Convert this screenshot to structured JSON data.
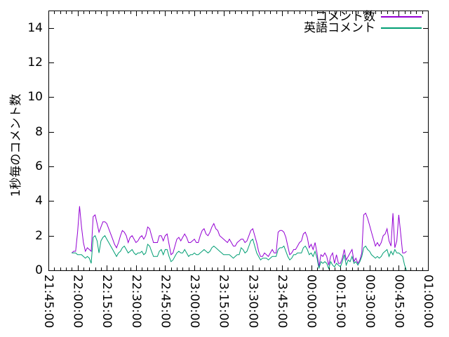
{
  "chart_data": {
    "type": "line",
    "title": "",
    "xlabel": "",
    "ylabel": "1秒毎のコメント数",
    "ylim": [
      0,
      15
    ],
    "y_ticks": [
      0,
      2,
      4,
      6,
      8,
      10,
      12,
      14
    ],
    "grid": false,
    "legend_position": "top-right-inside",
    "x_axis": {
      "unit": "time",
      "major_tick_interval_minutes": 15,
      "minor_tick_interval_minutes": 3,
      "range_minutes": 195,
      "tick_labels": [
        "21:45:00",
        "22:00:00",
        "22:15:00",
        "22:30:00",
        "22:45:00",
        "23:00:00",
        "23:15:00",
        "23:30:00",
        "23:45:00",
        "00:00:00",
        "00:15:00",
        "00:30:00",
        "00:45:00",
        "01:00:00"
      ]
    },
    "sample_interval_minutes": 1,
    "data_start_offset_minutes": 12,
    "data_start_time": "21:57:00",
    "series": [
      {
        "name": "コメント数",
        "color": "#9400d3",
        "values": [
          1.0,
          1.1,
          1.1,
          2.2,
          3.7,
          2.5,
          1.6,
          1.1,
          1.3,
          1.2,
          1.1,
          3.1,
          3.2,
          2.7,
          2.2,
          2.5,
          2.8,
          2.8,
          2.7,
          2.4,
          2.1,
          1.8,
          1.5,
          1.3,
          1.6,
          2.0,
          2.3,
          2.2,
          2.0,
          1.6,
          1.9,
          2.0,
          1.8,
          1.6,
          1.7,
          1.9,
          2.0,
          1.8,
          2.0,
          2.5,
          2.4,
          2.0,
          1.6,
          1.6,
          1.6,
          2.0,
          2.0,
          1.7,
          2.0,
          2.1,
          1.5,
          0.9,
          1.0,
          1.4,
          1.8,
          1.9,
          1.7,
          1.9,
          2.1,
          1.9,
          1.6,
          1.6,
          1.7,
          1.8,
          1.6,
          1.6,
          2.0,
          2.3,
          2.4,
          2.1,
          2.0,
          2.2,
          2.5,
          2.7,
          2.4,
          2.3,
          2.0,
          1.9,
          1.8,
          1.7,
          1.6,
          1.8,
          1.6,
          1.4,
          1.4,
          1.6,
          1.7,
          1.8,
          1.8,
          1.6,
          1.7,
          2.0,
          2.3,
          2.4,
          2.0,
          1.6,
          1.1,
          0.8,
          0.8,
          1.0,
          0.9,
          0.8,
          1.0,
          1.2,
          1.0,
          1.0,
          2.2,
          2.3,
          2.3,
          2.2,
          1.9,
          1.4,
          0.9,
          1.0,
          1.2,
          1.2,
          1.4,
          1.6,
          1.7,
          2.1,
          2.2,
          1.9,
          1.3,
          1.5,
          1.2,
          1.6,
          1.0,
          0.2,
          0.9,
          0.8,
          1.0,
          0.8,
          0.3,
          0.8,
          1.0,
          0.4,
          0.9,
          0.4,
          0.4,
          0.7,
          1.2,
          0.6,
          0.8,
          1.0,
          1.2,
          0.5,
          0.7,
          0.4,
          0.6,
          1.0,
          3.2,
          3.3,
          3.0,
          2.6,
          2.2,
          1.8,
          1.4,
          1.6,
          1.4,
          1.6,
          2.0,
          2.1,
          2.4,
          1.7,
          1.4,
          3.3,
          1.3,
          1.7,
          3.2,
          2.1,
          1.0,
          1.0,
          1.1
        ]
      },
      {
        "name": "英語コメント",
        "color": "#009e73",
        "values": [
          1.0,
          1.0,
          1.0,
          0.9,
          0.9,
          0.9,
          0.8,
          0.7,
          0.8,
          0.7,
          0.4,
          1.9,
          2.0,
          1.7,
          1.0,
          1.7,
          1.9,
          2.0,
          1.8,
          1.6,
          1.4,
          1.2,
          1.0,
          0.8,
          1.0,
          1.1,
          1.3,
          1.4,
          1.2,
          1.0,
          1.1,
          1.2,
          1.0,
          0.9,
          1.0,
          1.0,
          1.1,
          0.9,
          1.0,
          1.5,
          1.4,
          1.1,
          0.8,
          0.8,
          0.8,
          1.1,
          1.2,
          0.9,
          1.2,
          1.2,
          0.8,
          0.5,
          0.6,
          0.8,
          1.0,
          1.1,
          1.0,
          1.0,
          1.2,
          1.0,
          0.8,
          0.9,
          0.9,
          1.0,
          0.9,
          0.9,
          1.0,
          1.1,
          1.2,
          1.1,
          1.0,
          1.1,
          1.3,
          1.4,
          1.3,
          1.2,
          1.1,
          1.0,
          0.9,
          0.9,
          0.9,
          0.9,
          0.8,
          0.7,
          0.8,
          0.9,
          0.9,
          1.3,
          1.2,
          1.0,
          1.1,
          1.4,
          1.7,
          1.8,
          1.4,
          1.0,
          0.8,
          0.6,
          0.7,
          0.7,
          0.7,
          0.6,
          0.7,
          0.8,
          0.8,
          0.8,
          1.2,
          1.3,
          1.3,
          1.4,
          1.1,
          0.8,
          0.6,
          0.7,
          0.9,
          0.9,
          1.0,
          1.0,
          1.0,
          1.3,
          1.4,
          1.2,
          0.9,
          1.0,
          0.8,
          1.1,
          0.7,
          0.1,
          0.5,
          0.4,
          0.5,
          0.4,
          0.1,
          0.5,
          0.3,
          0.2,
          0.4,
          0.3,
          0.2,
          0.5,
          0.9,
          0.3,
          0.6,
          0.5,
          0.8,
          0.4,
          0.5,
          0.3,
          0.5,
          0.8,
          1.3,
          1.4,
          1.2,
          1.1,
          0.9,
          0.8,
          0.7,
          0.8,
          0.7,
          0.8,
          1.0,
          1.1,
          1.2,
          0.8,
          1.1,
          0.9,
          1.2,
          1.0,
          1.0,
          0.9,
          0.8,
          0.3,
          0.0
        ]
      }
    ]
  },
  "colors": {
    "background": "#ffffff",
    "axis": "#000000",
    "series1": "#9400d3",
    "series2": "#009e73"
  }
}
